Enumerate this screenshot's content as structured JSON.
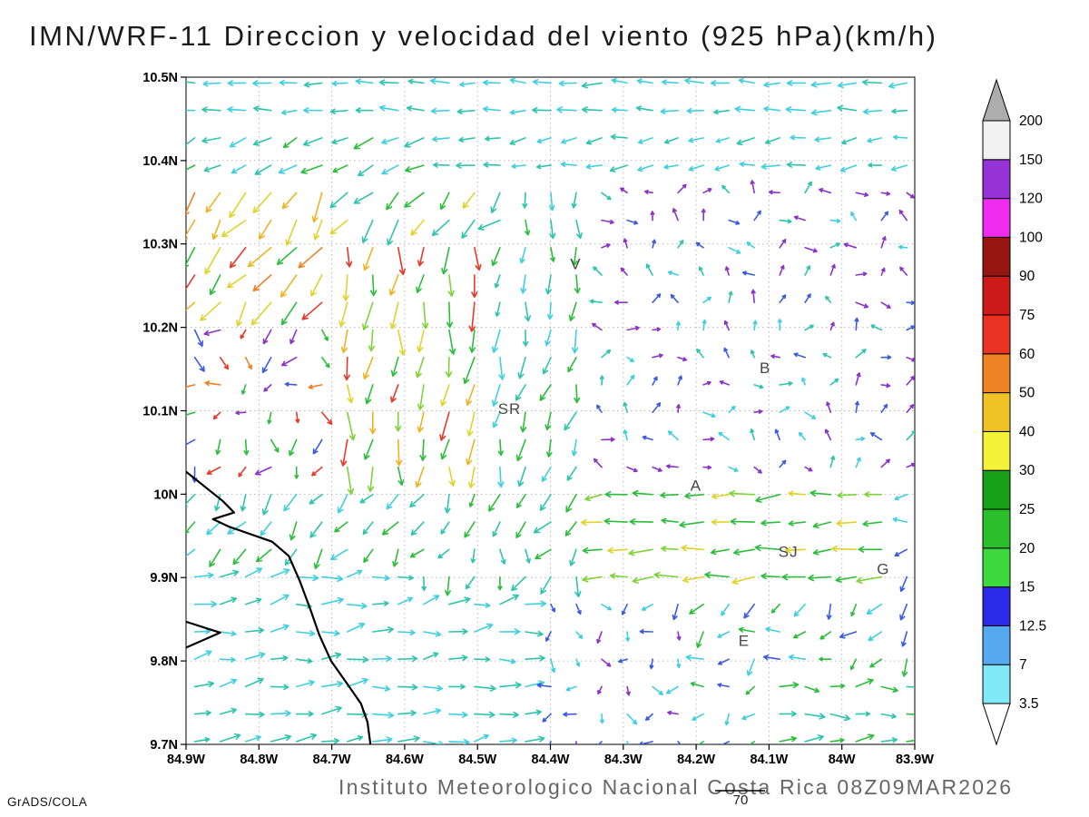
{
  "title": "IMN/WRF-11 Direccion y velocidad del viento (925 hPa)(km/h)",
  "footer": {
    "institute": "Instituto Meteorologico Nacional Costa Rica 08Z09MAR2026",
    "credit": "GrADS/COLA",
    "ref_vector_label": "70"
  },
  "chart_data": {
    "type": "vector_field_map",
    "title": "IMN/WRF-11 Direccion y velocidad del viento (925 hPa)(km/h)",
    "variable": "Direccion y velocidad del viento",
    "level": "925 hPa",
    "units": "km/h",
    "reference_vector_kmh": 70,
    "grid_lines": true,
    "x_axis": {
      "range": [
        84.9,
        83.9
      ],
      "values": [
        84.9,
        84.8,
        84.7,
        84.6,
        84.5,
        84.4,
        84.3,
        84.2,
        84.1,
        84.0,
        83.9
      ],
      "labels": [
        "84.9W",
        "84.8W",
        "84.7W",
        "84.6W",
        "84.5W",
        "84.4W",
        "84.3W",
        "84.2W",
        "84.1W",
        "84W",
        "83.9W"
      ]
    },
    "y_axis": {
      "range": [
        10.5,
        9.7
      ],
      "values": [
        10.5,
        10.4,
        10.3,
        10.2,
        10.1,
        10.0,
        9.9,
        9.8,
        9.7
      ],
      "labels": [
        "10.5N",
        "10.4N",
        "10.3N",
        "10.2N",
        "10.1N",
        "10N",
        "9.9N",
        "9.8N",
        "9.7N"
      ]
    },
    "colorbar": {
      "labels_top_to_bottom": [
        "200",
        "150",
        "120",
        "100",
        "90",
        "75",
        "60",
        "50",
        "40",
        "30",
        "25",
        "20",
        "15",
        "12.5",
        "7",
        "3.5"
      ],
      "segments_bottom_to_top": [
        {
          "range": [
            3.5,
            7
          ],
          "color": "#7FE9F7"
        },
        {
          "range": [
            7,
            12.5
          ],
          "color": "#55AAEF"
        },
        {
          "range": [
            12.5,
            15
          ],
          "color": "#2A2AE8"
        },
        {
          "range": [
            15,
            20
          ],
          "color": "#3FD83F"
        },
        {
          "range": [
            20,
            25
          ],
          "color": "#2BC02B"
        },
        {
          "range": [
            25,
            30
          ],
          "color": "#17A017"
        },
        {
          "range": [
            30,
            40
          ],
          "color": "#F2F23A"
        },
        {
          "range": [
            40,
            50
          ],
          "color": "#EFC327"
        },
        {
          "range": [
            50,
            60
          ],
          "color": "#EF8426"
        },
        {
          "range": [
            60,
            75
          ],
          "color": "#EA3323"
        },
        {
          "range": [
            75,
            90
          ],
          "color": "#CC1A1A"
        },
        {
          "range": [
            90,
            100
          ],
          "color": "#951511"
        },
        {
          "range": [
            100,
            120
          ],
          "color": "#EE2BEE"
        },
        {
          "range": [
            120,
            150
          ],
          "color": "#9633D6"
        },
        {
          "range": [
            150,
            200
          ],
          "color": "#F2F2F2"
        }
      ],
      "over_color": "#ADADAD",
      "under_color": "#FFFFFF"
    },
    "station_labels": [
      {
        "text": "V",
        "lon": 84.373,
        "lat": 10.27
      },
      {
        "text": "B",
        "lon": 84.113,
        "lat": 10.145
      },
      {
        "text": "SR",
        "lon": 84.472,
        "lat": 10.096
      },
      {
        "text": "A",
        "lon": 84.208,
        "lat": 10.004
      },
      {
        "text": "SJ",
        "lon": 84.087,
        "lat": 9.925
      },
      {
        "text": "G",
        "lon": 83.952,
        "lat": 9.904
      },
      {
        "text": "E",
        "lon": 84.142,
        "lat": 9.818
      }
    ],
    "coastline": [
      [
        84.9,
        10.027
      ],
      [
        84.85,
        9.992
      ],
      [
        84.834,
        9.978
      ],
      [
        84.863,
        9.97
      ],
      [
        84.841,
        9.961
      ],
      [
        84.782,
        9.943
      ],
      [
        84.759,
        9.926
      ],
      [
        84.744,
        9.896
      ],
      [
        84.729,
        9.861
      ],
      [
        84.717,
        9.831
      ],
      [
        84.701,
        9.8
      ],
      [
        84.68,
        9.774
      ],
      [
        84.66,
        9.749
      ],
      [
        84.651,
        9.727
      ],
      [
        84.647,
        9.7
      ]
    ],
    "coast_spur": [
      [
        84.9,
        9.847
      ],
      [
        84.853,
        9.834
      ],
      [
        84.9,
        9.816
      ]
    ],
    "vector_grid": {
      "cols": 29,
      "rows": 25,
      "lon_start": 84.888,
      "lon_step": 0.0349,
      "lat_start": 10.493,
      "lat_step": 0.0329,
      "seed": 1337
    },
    "palette": {
      "cyan": {
        "hex": "#41CFE0",
        "speed_kmh": [
          3.5,
          7
        ]
      },
      "teal": {
        "hex": "#2FC4AE",
        "speed_kmh": [
          15,
          20
        ]
      },
      "green": {
        "hex": "#2DBD3C",
        "speed_kmh": [
          20,
          30
        ]
      },
      "lightgreen": {
        "hex": "#7ED339",
        "speed_kmh": [
          15,
          20
        ]
      },
      "blue": {
        "hex": "#3B5BE0",
        "speed_kmh": [
          12.5,
          15
        ]
      },
      "violet": {
        "hex": "#8B33C7",
        "speed_kmh": [
          120,
          150
        ]
      },
      "yellow": {
        "hex": "#E0D32C",
        "speed_kmh": [
          30,
          40
        ]
      },
      "gold": {
        "hex": "#EBB424",
        "speed_kmh": [
          40,
          50
        ]
      },
      "orange": {
        "hex": "#EE7F22",
        "speed_kmh": [
          50,
          60
        ]
      },
      "red": {
        "hex": "#E5392B",
        "speed_kmh": [
          60,
          75
        ]
      }
    },
    "wind_regions": [
      {
        "name": "north-band",
        "lat": [
          10.44,
          10.51
        ],
        "lon": [
          83.9,
          84.9
        ],
        "dir": 180,
        "jit": 12,
        "colors": [
          "cyan",
          "cyan",
          "teal"
        ],
        "len": [
          16,
          22
        ]
      },
      {
        "name": "north-band-2-west",
        "lat": [
          10.38,
          10.44
        ],
        "lon": [
          84.55,
          84.9
        ],
        "dir": 205,
        "jit": 15,
        "colors": [
          "teal",
          "green",
          "cyan"
        ],
        "len": [
          16,
          24
        ]
      },
      {
        "name": "north-band-2-east",
        "lat": [
          10.38,
          10.44
        ],
        "lon": [
          83.9,
          84.55
        ],
        "dir": 188,
        "jit": 14,
        "colors": [
          "cyan",
          "teal"
        ],
        "len": [
          14,
          20
        ]
      },
      {
        "name": "northwest-jet",
        "lat": [
          10.2,
          10.38
        ],
        "lon": [
          84.68,
          84.9
        ],
        "dir": 235,
        "jit": 22,
        "colors": [
          "yellow",
          "gold",
          "orange",
          "green",
          "yellow",
          "red"
        ],
        "len": [
          22,
          34
        ]
      },
      {
        "name": "turning-arc",
        "lat": [
          10.3,
          10.38
        ],
        "lon": [
          84.44,
          84.72
        ],
        "dir": 225,
        "jit": 25,
        "colors": [
          "teal",
          "green",
          "yellow"
        ],
        "len": [
          20,
          30
        ]
      },
      {
        "name": "v-area",
        "lat": [
          10.22,
          10.38
        ],
        "lon": [
          84.34,
          84.5
        ],
        "dir": 265,
        "jit": 18,
        "colors": [
          "green",
          "teal",
          "cyan"
        ],
        "len": [
          14,
          22
        ]
      },
      {
        "name": "central-chute",
        "lat": [
          10.0,
          10.38
        ],
        "lon": [
          84.5,
          84.68
        ],
        "dir": 265,
        "jit": 18,
        "colors": [
          "green",
          "yellow",
          "lightgreen",
          "gold",
          "green",
          "red"
        ],
        "len": [
          20,
          32
        ]
      },
      {
        "name": "central-chute-east",
        "lat": [
          10.0,
          10.38
        ],
        "lon": [
          84.36,
          84.5
        ],
        "dir": 255,
        "jit": 22,
        "colors": [
          "green",
          "cyan",
          "teal"
        ],
        "len": [
          16,
          26
        ]
      },
      {
        "name": "west-mosaic",
        "lat": [
          10.02,
          10.2
        ],
        "lon": [
          84.68,
          84.9
        ],
        "dir": 240,
        "jit": 70,
        "colors": [
          "violet",
          "blue",
          "red",
          "orange",
          "green"
        ],
        "len": [
          10,
          20
        ]
      },
      {
        "name": "coast-flow",
        "lat": [
          9.93,
          10.04
        ],
        "lon": [
          84.6,
          84.9
        ],
        "dir": 235,
        "jit": 25,
        "colors": [
          "green",
          "teal",
          "cyan"
        ],
        "len": [
          16,
          24
        ]
      },
      {
        "name": "valley-westerly",
        "lat": [
          9.9,
          10.02
        ],
        "lon": [
          83.92,
          84.36
        ],
        "dir": 185,
        "jit": 12,
        "colors": [
          "green",
          "lightgreen",
          "yellow",
          "green"
        ],
        "len": [
          18,
          28
        ]
      },
      {
        "name": "valley-center",
        "lat": [
          9.9,
          10.0
        ],
        "lon": [
          84.36,
          84.6
        ],
        "dir": 250,
        "jit": 40,
        "colors": [
          "green",
          "teal"
        ],
        "len": [
          14,
          22
        ]
      },
      {
        "name": "southeast-mid",
        "lat": [
          9.84,
          9.92
        ],
        "lon": [
          83.9,
          84.25
        ],
        "dir": 235,
        "jit": 30,
        "colors": [
          "cyan",
          "blue",
          "green"
        ],
        "len": [
          12,
          20
        ]
      },
      {
        "name": "south-corner-easterly",
        "lat": [
          9.7,
          9.77
        ],
        "lon": [
          83.9,
          84.12
        ],
        "dir": 5,
        "jit": 25,
        "colors": [
          "green",
          "teal"
        ],
        "len": [
          14,
          22
        ]
      },
      {
        "name": "south-band-easterly",
        "lat": [
          9.7,
          9.93
        ],
        "lon": [
          84.42,
          84.9
        ],
        "dir": 10,
        "jit": 20,
        "colors": [
          "cyan",
          "teal"
        ],
        "len": [
          16,
          24
        ]
      },
      {
        "name": "south-center-mosaic",
        "lat": [
          9.7,
          9.9
        ],
        "lon": [
          84.22,
          84.42
        ],
        "dir": 250,
        "jit": 90,
        "colors": [
          "violet",
          "cyan",
          "blue"
        ],
        "len": [
          8,
          16
        ]
      },
      {
        "name": "southeast-corner",
        "lat": [
          9.7,
          9.84
        ],
        "lon": [
          83.9,
          84.22
        ],
        "dir": 220,
        "jit": 60,
        "colors": [
          "cyan",
          "green",
          "blue"
        ],
        "len": [
          12,
          20
        ]
      },
      {
        "name": "east-mosaic",
        "lat": [
          10.02,
          10.4
        ],
        "lon": [
          83.9,
          84.36
        ],
        "dir": 70,
        "jit": 110,
        "colors": [
          "violet",
          "blue",
          "cyan",
          "violet",
          "teal"
        ],
        "len": [
          8,
          14
        ]
      },
      {
        "name": "default",
        "lat": [
          9.6,
          10.6
        ],
        "lon": [
          83.8,
          85.0
        ],
        "dir": 200,
        "jit": 80,
        "colors": [
          "cyan",
          "violet",
          "blue"
        ],
        "len": [
          10,
          16
        ]
      }
    ]
  }
}
